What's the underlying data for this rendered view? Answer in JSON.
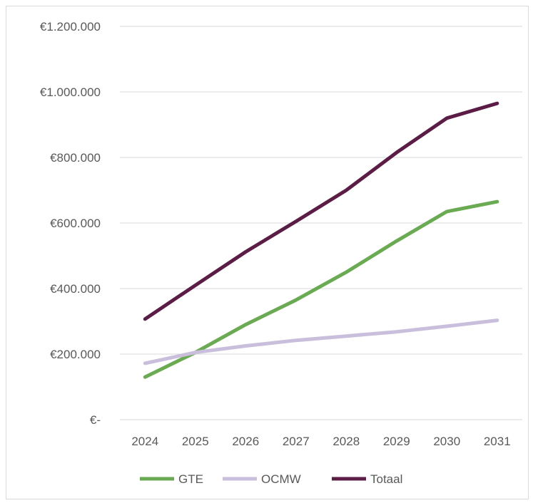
{
  "chart_data": {
    "type": "line",
    "title": "",
    "xlabel": "",
    "ylabel": "",
    "categories": [
      "2024",
      "2025",
      "2026",
      "2027",
      "2028",
      "2029",
      "2030",
      "2031"
    ],
    "ylim": [
      0,
      1200000
    ],
    "y_ticks": [
      0,
      200000,
      400000,
      600000,
      800000,
      1000000,
      1200000
    ],
    "y_tick_labels": [
      "€-",
      "€200.000",
      "€400.000",
      "€600.000",
      "€800.000",
      "€1.000.000",
      "€1.200.000"
    ],
    "grid": "horizontal",
    "legend_position": "bottom",
    "series": [
      {
        "name": "GTE",
        "color": "#6aaa52",
        "values": [
          130000,
          205000,
          290000,
          365000,
          450000,
          545000,
          635000,
          665000
        ]
      },
      {
        "name": "OCMW",
        "color": "#c9bedb",
        "values": [
          172000,
          205000,
          225000,
          242000,
          255000,
          268000,
          285000,
          303000
        ]
      },
      {
        "name": "Totaal",
        "color": "#5b1d45",
        "values": [
          307000,
          410000,
          512000,
          605000,
          700000,
          815000,
          920000,
          965000
        ]
      }
    ]
  }
}
